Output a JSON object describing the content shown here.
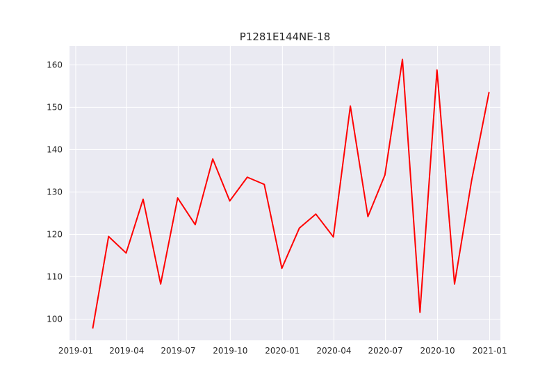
{
  "chart_data": {
    "type": "line",
    "title": "P1281E144NE-18",
    "xlabel": "",
    "ylabel": "",
    "grid": true,
    "x_tick_labels": [
      "2019-01",
      "2019-04",
      "2019-07",
      "2019-10",
      "2020-01",
      "2020-04",
      "2020-07",
      "2020-10",
      "2021-01"
    ],
    "y_tick_labels": [
      "100",
      "110",
      "120",
      "130",
      "140",
      "150",
      "160"
    ],
    "ylim": [
      95,
      164.5
    ],
    "xlim": [
      "2018-12-21",
      "2021-01-20"
    ],
    "series": [
      {
        "color": "#ff0000",
        "x": [
          "2019-01-31",
          "2019-02-28",
          "2019-03-31",
          "2019-04-30",
          "2019-05-31",
          "2019-06-30",
          "2019-07-31",
          "2019-08-31",
          "2019-09-30",
          "2019-10-31",
          "2019-11-30",
          "2019-12-31",
          "2020-01-31",
          "2020-02-29",
          "2020-03-31",
          "2020-04-30",
          "2020-05-31",
          "2020-06-30",
          "2020-07-31",
          "2020-08-31",
          "2020-09-30",
          "2020-10-31",
          "2020-11-30",
          "2020-12-31"
        ],
        "y": [
          97.8,
          119.5,
          115.6,
          128.3,
          108.3,
          128.6,
          122.3,
          137.8,
          127.9,
          133.5,
          131.8,
          112.0,
          121.5,
          124.8,
          119.4,
          150.3,
          124.2,
          134.0,
          161.3,
          101.6,
          158.8,
          108.3,
          132.6,
          153.6
        ]
      }
    ]
  }
}
